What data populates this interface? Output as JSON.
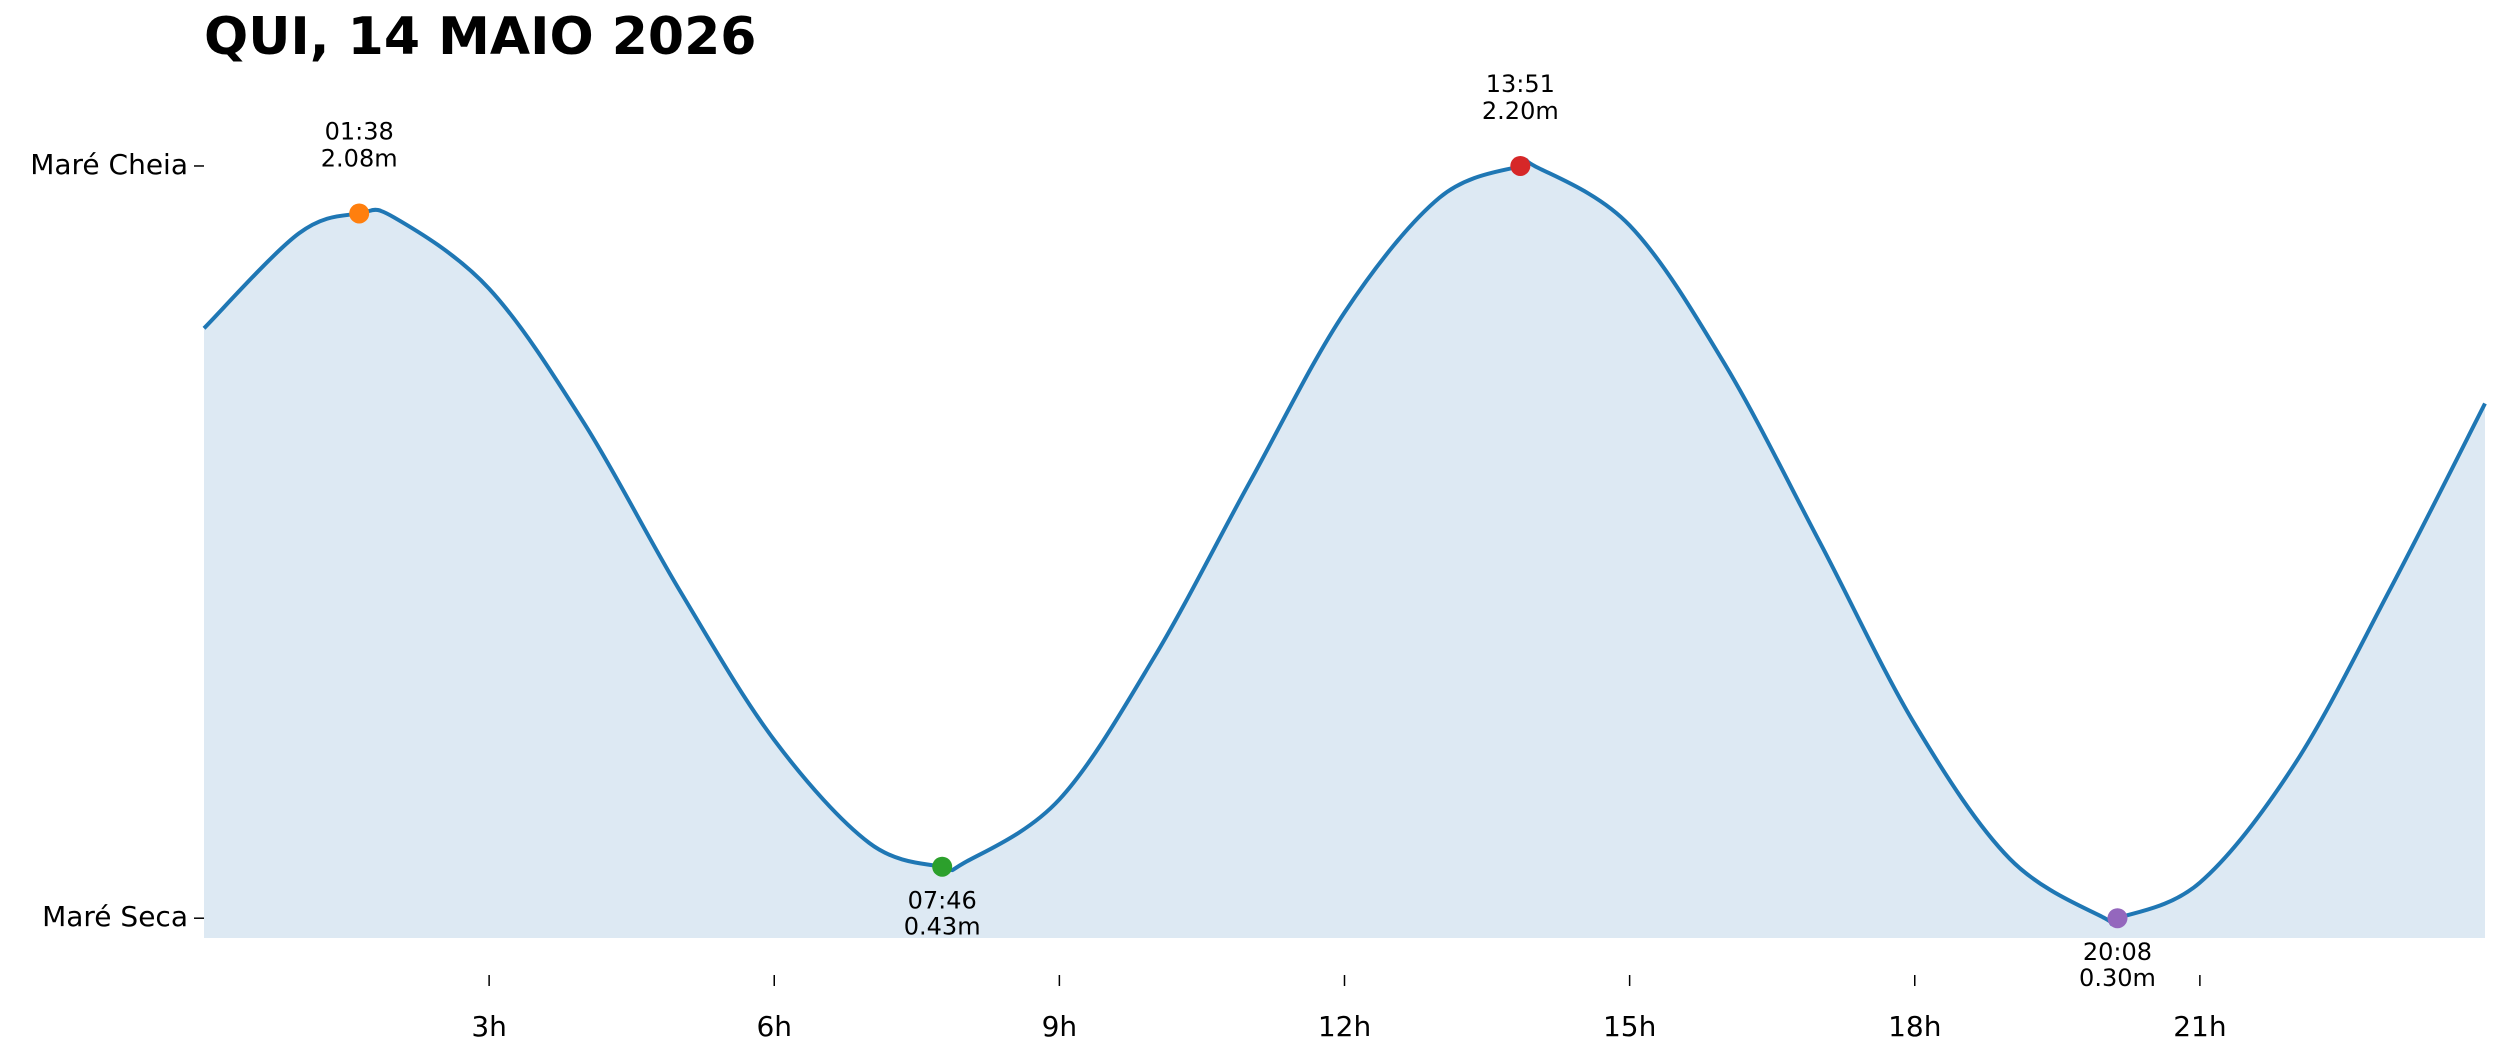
{
  "chart_data": {
    "type": "line",
    "title": "QUI, 14 MAIO 2026",
    "x": [
      0,
      1,
      1.633,
      2,
      3,
      4,
      5,
      6,
      7,
      7.767,
      8,
      9,
      10,
      11,
      12,
      13,
      13.85,
      14,
      15,
      16,
      17,
      18,
      19,
      20,
      20.133,
      21,
      22,
      23,
      24
    ],
    "series": [
      {
        "color": "#1f77b4",
        "fill": "#dde9f3",
        "values": [
          1.79,
          2.03,
          2.08,
          2.07,
          1.89,
          1.55,
          1.13,
          0.75,
          0.49,
          0.43,
          0.44,
          0.6,
          0.96,
          1.4,
          1.83,
          2.12,
          2.2,
          2.2,
          2.05,
          1.7,
          1.25,
          0.79,
          0.45,
          0.3,
          0.3,
          0.39,
          0.69,
          1.13,
          1.6
        ]
      }
    ],
    "extremes": {
      "x": [
        1.633,
        7.767,
        13.85,
        20.133
      ],
      "time_labels": [
        "01:38",
        "07:46",
        "13:51",
        "20:08"
      ],
      "values": [
        2.08,
        0.43,
        2.2,
        0.3
      ],
      "value_labels": [
        "2.08m",
        "0.43m",
        "2.20m",
        "0.30m"
      ],
      "colors": [
        "#ff7f0e",
        "#2ca02c",
        "#d62728",
        "#9467bd"
      ]
    },
    "xlim": [
      0,
      24
    ],
    "ylim": [
      0.25,
      2.45
    ],
    "xticks": [
      {
        "value": 3,
        "label": "3h"
      },
      {
        "value": 6,
        "label": "6h"
      },
      {
        "value": 9,
        "label": "9h"
      },
      {
        "value": 12,
        "label": "12h"
      },
      {
        "value": 15,
        "label": "15h"
      },
      {
        "value": 18,
        "label": "18h"
      },
      {
        "value": 21,
        "label": "21h"
      }
    ],
    "yticks": [
      {
        "value": 0.3,
        "label": "Maré Seca"
      },
      {
        "value": 2.2,
        "label": "Maré Cheia"
      }
    ]
  }
}
